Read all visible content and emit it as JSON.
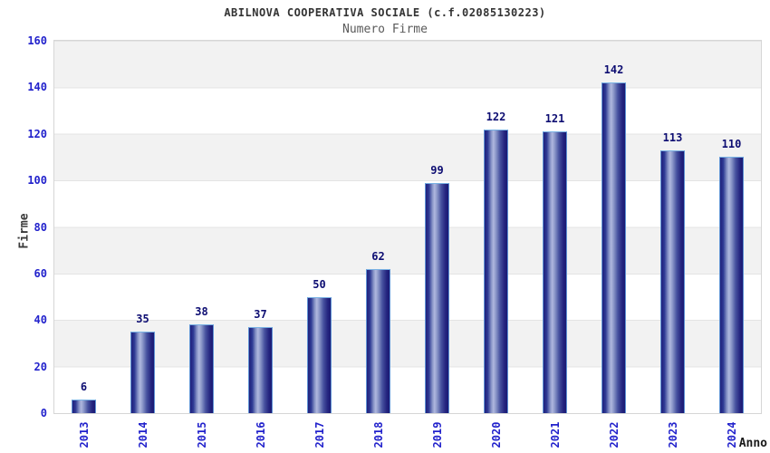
{
  "header": {
    "title": "ABILNOVA COOPERATIVA SOCIALE (c.f.02085130223)",
    "subtitle": "Numero Firme"
  },
  "chart_data": {
    "type": "bar",
    "title": "ABILNOVA COOPERATIVA SOCIALE (c.f.02085130223)",
    "subtitle": "Numero Firme",
    "categories": [
      "2013",
      "2014",
      "2015",
      "2016",
      "2017",
      "2018",
      "2019",
      "2020",
      "2021",
      "2022",
      "2023",
      "2024"
    ],
    "values": [
      6,
      35,
      38,
      37,
      50,
      62,
      99,
      122,
      121,
      142,
      113,
      110
    ],
    "xlabel": "Anno",
    "ylabel": "Firme",
    "ylim": [
      0,
      160
    ],
    "yticks": [
      0,
      20,
      40,
      60,
      80,
      100,
      120,
      140,
      160
    ],
    "legend": "none",
    "grid": "horizontal-alternating-bands"
  },
  "colors": {
    "bar_dark": "#20207c",
    "bar_highlight": "#afb7de",
    "bar_border": "#5f93d4",
    "tick_label": "#2222cc",
    "value_label": "#0d0d72",
    "title": "#333333",
    "subtitle": "#5a5a5a",
    "band_gray": "#f2f2f2",
    "band_white": "#ffffff",
    "plot_border": "#d6d6d6"
  }
}
